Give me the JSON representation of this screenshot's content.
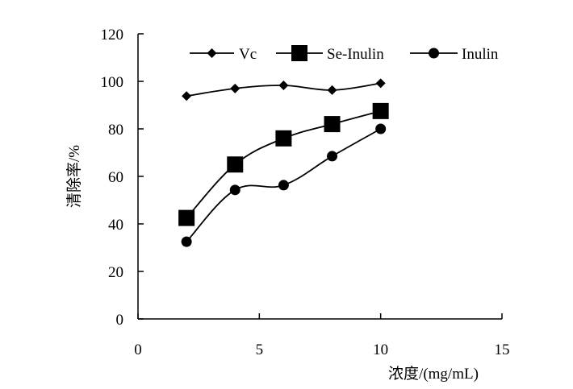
{
  "chart_data": {
    "type": "line",
    "title": "",
    "xlabel": "浓度/(mg/mL)",
    "ylabel": "清除率/%",
    "xlim": [
      0,
      15
    ],
    "ylim": [
      0,
      120
    ],
    "xticks": [
      0,
      5,
      10,
      15
    ],
    "yticks": [
      0,
      20,
      40,
      60,
      80,
      100,
      120
    ],
    "grid": false,
    "legend_position": "top",
    "series": [
      {
        "name": "Vc",
        "marker": "diamond",
        "x": [
          2,
          4,
          6,
          8,
          10
        ],
        "values": [
          93.8,
          97,
          98.3,
          96.3,
          99.2
        ]
      },
      {
        "name": "Se-Inulin",
        "marker": "square",
        "x": [
          2,
          4,
          6,
          8,
          10
        ],
        "values": [
          42.5,
          65,
          76,
          82,
          87.5
        ]
      },
      {
        "name": "Inulin",
        "marker": "circle",
        "x": [
          2,
          4,
          6,
          8,
          10
        ],
        "values": [
          32.5,
          54.3,
          56.3,
          68.5,
          80
        ]
      }
    ]
  }
}
